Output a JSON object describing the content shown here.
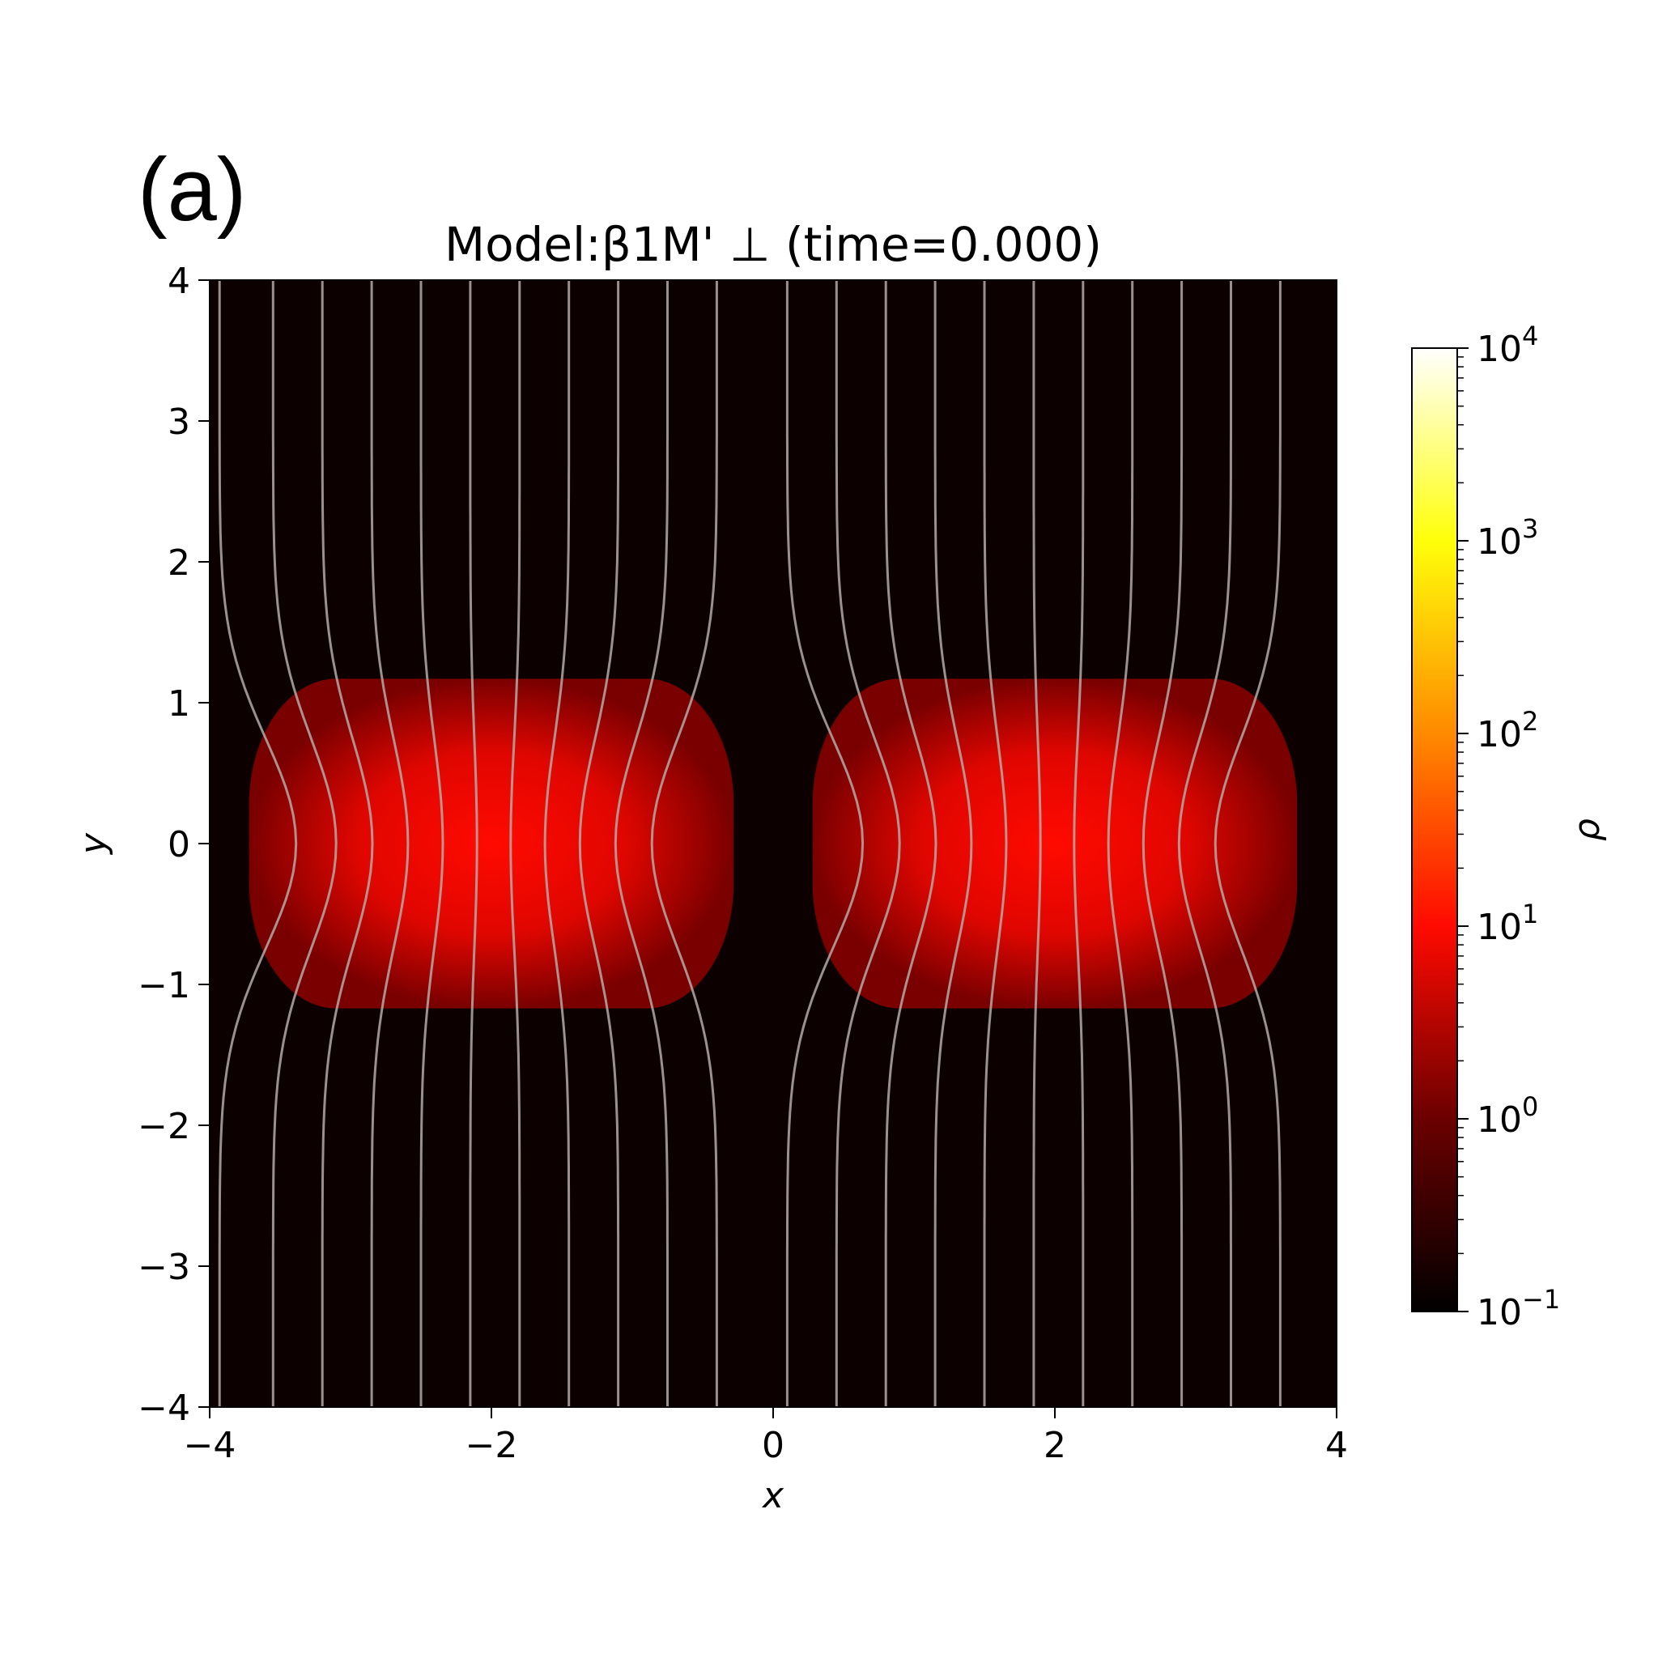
{
  "figure": {
    "panel_label": "(a)",
    "title": "Model:β1M' ⊥ (time=0.000)"
  },
  "chart_data": {
    "type": "heatmap",
    "title": "Model:β1M' ⊥ (time=0.000)",
    "xlabel": "x",
    "ylabel": "y",
    "xlim": [
      -4,
      4
    ],
    "ylim": [
      -4,
      4
    ],
    "x_ticks": [
      -4,
      -2,
      0,
      2,
      4
    ],
    "x_tick_labels": [
      "−4",
      "−2",
      "0",
      "2",
      "4"
    ],
    "y_ticks": [
      4,
      3,
      2,
      1,
      0,
      -1,
      -2,
      -3,
      -4
    ],
    "y_tick_labels": [
      "4",
      "3",
      "2",
      "1",
      "0",
      "−1",
      "−2",
      "−3",
      "−4"
    ],
    "colormap": "hot",
    "colorbar": {
      "label": "ρ",
      "scale": "log",
      "range": [
        0.1,
        10000
      ],
      "ticks": [
        {
          "base": "10",
          "exp": "4",
          "value": 10000
        },
        {
          "base": "10",
          "exp": "3",
          "value": 1000
        },
        {
          "base": "10",
          "exp": "2",
          "value": 100
        },
        {
          "base": "10",
          "exp": "1",
          "value": 10
        },
        {
          "base": "10",
          "exp": "0",
          "value": 1
        },
        {
          "base": "10",
          "exp": "−1",
          "value": 0.1
        }
      ]
    },
    "background_density": 0.1,
    "clouds": [
      {
        "center": [
          -2,
          0
        ],
        "half_width": 1.72,
        "half_height": 1.17,
        "peak_density": 10
      },
      {
        "center": [
          2,
          0
        ],
        "half_width": 1.72,
        "half_height": 1.17,
        "peak_density": 10
      }
    ],
    "field_lines": {
      "color": "#b3aaa8",
      "count": 22,
      "x_positions_at_edge": [
        -3.93,
        -3.55,
        -3.2,
        -2.85,
        -2.5,
        -2.15,
        -1.8,
        -1.45,
        -1.1,
        -0.75,
        -0.4,
        0.1,
        0.45,
        0.8,
        1.15,
        1.5,
        1.85,
        2.2,
        2.55,
        2.9,
        3.25,
        3.6
      ]
    }
  },
  "colors": {
    "background": "#0d0000",
    "cloud_peak": "#ff0a00",
    "field_line": "#b3aaa8"
  }
}
